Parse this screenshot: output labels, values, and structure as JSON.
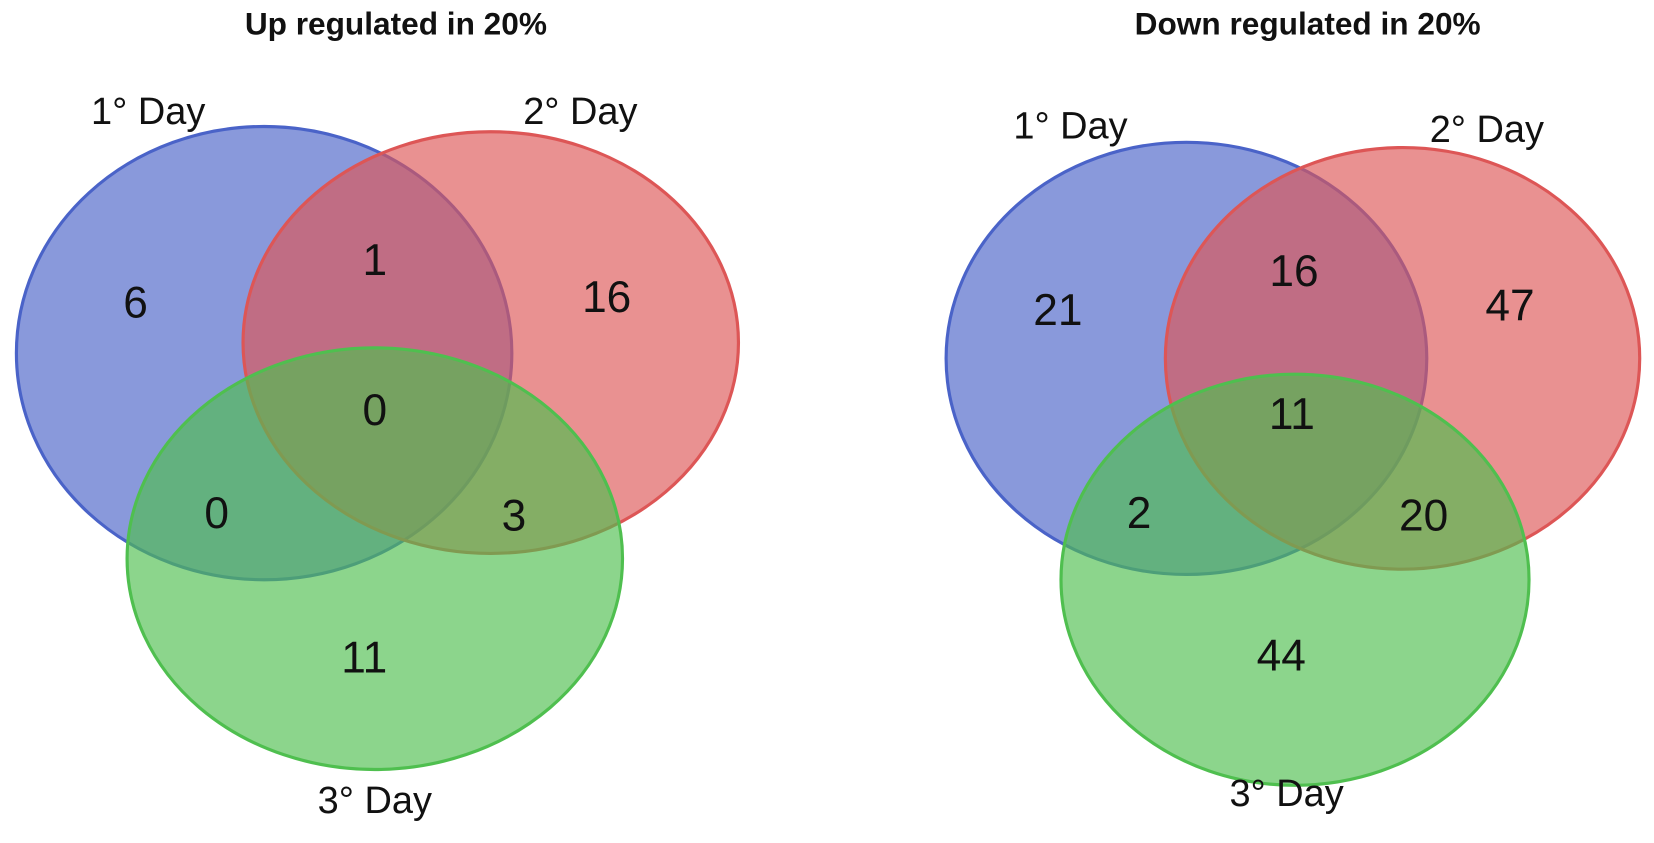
{
  "chart_data": [
    {
      "type": "venn",
      "title": "Up regulated in 20%",
      "sets": [
        {
          "name": "1° Day",
          "color": "#4a63c8"
        },
        {
          "name": "2° Day",
          "color": "#dd5656"
        },
        {
          "name": "3° Day",
          "color": "#4fbf4f"
        }
      ],
      "values": [
        6,
        1,
        16,
        0,
        0,
        3,
        11
      ]
    },
    {
      "type": "venn",
      "title": "Down regulated in 20%",
      "sets": [
        {
          "name": "1° Day",
          "color": "#4a63c8"
        },
        {
          "name": "2° Day",
          "color": "#dd5656"
        },
        {
          "name": "3° Day",
          "color": "#4fbf4f"
        }
      ],
      "values": [
        21,
        16,
        47,
        11,
        2,
        20,
        44
      ]
    }
  ]
}
